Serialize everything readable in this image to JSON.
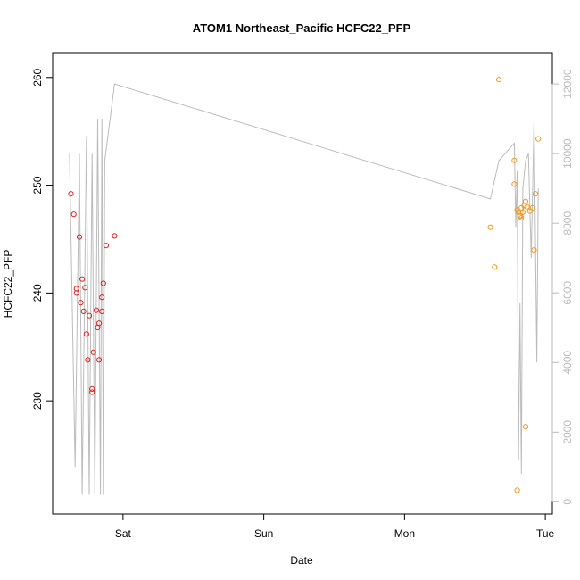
{
  "chart_data": {
    "type": "scatter",
    "title": "ATOM1 Northeast_Pacific HCFC22_PFP",
    "xlabel": "Date",
    "ylabel": "HCFC22_PFP",
    "x_unit": "days since Sat 00:00",
    "xlim": [
      -0.5,
      3.05
    ],
    "ylim": [
      219.5,
      262.3
    ],
    "y2lim": [
      -350,
      12900
    ],
    "x_ticks": [
      {
        "value": 0,
        "label": "Sat"
      },
      {
        "value": 1,
        "label": "Sun"
      },
      {
        "value": 2,
        "label": "Mon"
      },
      {
        "value": 3,
        "label": "Tue"
      }
    ],
    "y_ticks": [
      230,
      240,
      250,
      260
    ],
    "y2_ticks": [
      0,
      2000,
      4000,
      6000,
      8000,
      10000,
      12000
    ],
    "grid": false,
    "legend": "none",
    "colors": {
      "series1": "#dd2222",
      "series2": "#ee9922",
      "altitude_line": "#bbbbbb",
      "axis": "#000000",
      "right_axis": "#bbbbbb"
    },
    "series": [
      {
        "color": "#dd2222",
        "points": [
          [
            -0.37,
            249.2
          ],
          [
            -0.35,
            247.3
          ],
          [
            -0.33,
            240.4
          ],
          [
            -0.33,
            240.0
          ],
          [
            -0.31,
            245.2
          ],
          [
            -0.3,
            239.1
          ],
          [
            -0.29,
            241.3
          ],
          [
            -0.28,
            238.3
          ],
          [
            -0.27,
            240.5
          ],
          [
            -0.26,
            236.2
          ],
          [
            -0.25,
            233.8
          ],
          [
            -0.24,
            237.9
          ],
          [
            -0.22,
            231.1
          ],
          [
            -0.22,
            230.8
          ],
          [
            -0.21,
            234.5
          ],
          [
            -0.19,
            238.4
          ],
          [
            -0.18,
            236.8
          ],
          [
            -0.17,
            237.2
          ],
          [
            -0.17,
            233.8
          ],
          [
            -0.15,
            238.3
          ],
          [
            -0.15,
            239.6
          ],
          [
            -0.14,
            240.9
          ],
          [
            -0.12,
            244.4
          ],
          [
            -0.06,
            245.3
          ]
        ]
      },
      {
        "color": "#ee9922",
        "points": [
          [
            2.61,
            246.1
          ],
          [
            2.64,
            242.4
          ],
          [
            2.67,
            259.8
          ],
          [
            2.78,
            250.1
          ],
          [
            2.78,
            252.3
          ],
          [
            2.8,
            221.7
          ],
          [
            2.8,
            247.7
          ],
          [
            2.81,
            247.5
          ],
          [
            2.82,
            247.1
          ],
          [
            2.82,
            247.2
          ],
          [
            2.83,
            247.0
          ],
          [
            2.83,
            247.9
          ],
          [
            2.84,
            247.5
          ],
          [
            2.85,
            248.1
          ],
          [
            2.86,
            248.5
          ],
          [
            2.86,
            227.6
          ],
          [
            2.87,
            248.0
          ],
          [
            2.89,
            247.6
          ],
          [
            2.91,
            247.9
          ],
          [
            2.92,
            244.0
          ],
          [
            2.93,
            249.2
          ],
          [
            2.95,
            254.3
          ]
        ]
      }
    ],
    "altitude_line": {
      "axis": "right",
      "points": [
        [
          -0.38,
          10000
        ],
        [
          -0.34,
          1000
        ],
        [
          -0.31,
          10000
        ],
        [
          -0.29,
          200
        ],
        [
          -0.26,
          10500
        ],
        [
          -0.24,
          200
        ],
        [
          -0.22,
          10000
        ],
        [
          -0.2,
          200
        ],
        [
          -0.18,
          11000
        ],
        [
          -0.16,
          200
        ],
        [
          -0.15,
          11000
        ],
        [
          -0.14,
          200
        ],
        [
          -0.13,
          9800
        ],
        [
          -0.06,
          12000
        ],
        [
          2.61,
          8700
        ],
        [
          2.67,
          9800
        ],
        [
          2.78,
          10300
        ],
        [
          2.79,
          7900
        ],
        [
          2.8,
          9500
        ],
        [
          2.81,
          1200
        ],
        [
          2.82,
          5700
        ],
        [
          2.83,
          800
        ],
        [
          2.84,
          9000
        ],
        [
          2.86,
          9800
        ],
        [
          2.88,
          10000
        ],
        [
          2.9,
          7000
        ],
        [
          2.92,
          11000
        ],
        [
          2.94,
          4000
        ],
        [
          2.95,
          9000
        ]
      ]
    }
  }
}
